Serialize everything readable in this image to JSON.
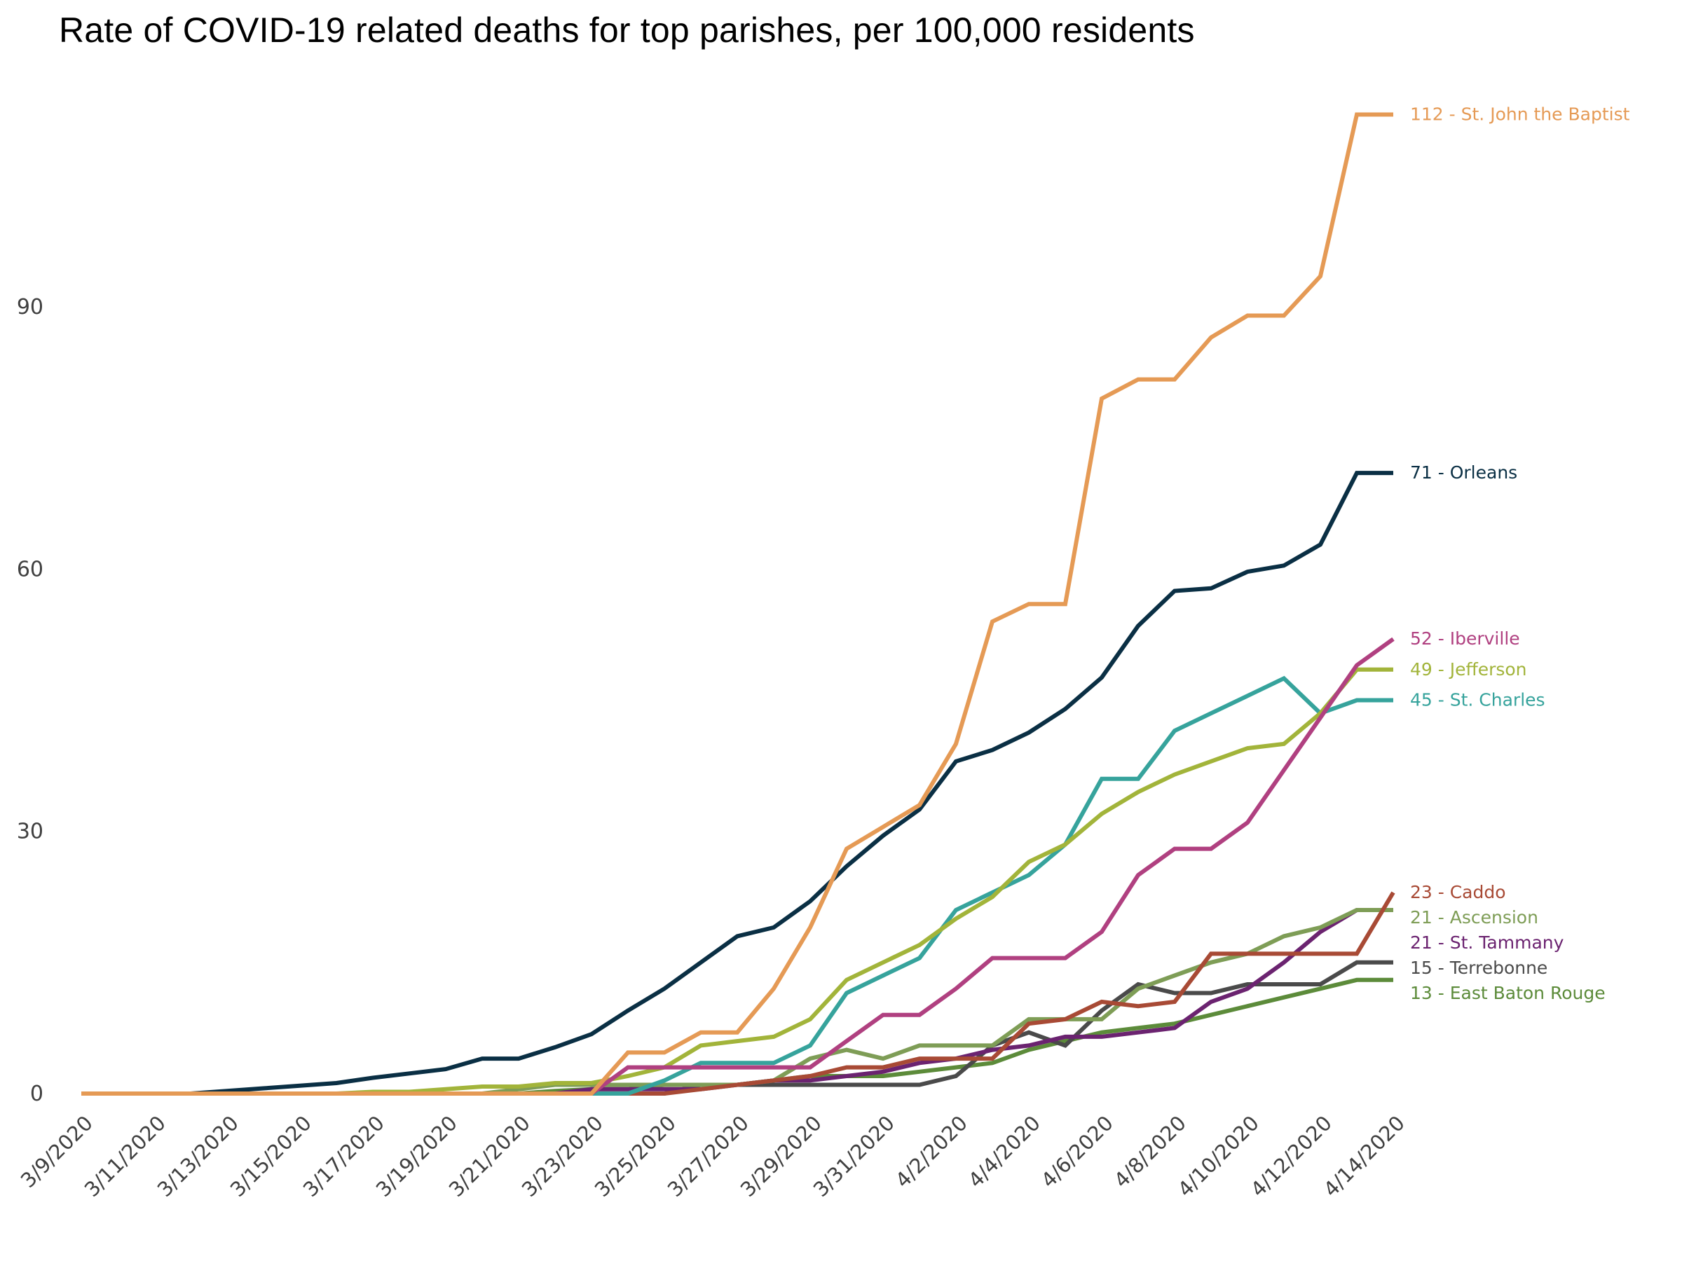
{
  "chart_data": {
    "type": "line",
    "title": "Rate of COVID-19 related deaths for top parishes, per 100,000 residents",
    "xlabel": "",
    "ylabel": "",
    "ylim": [
      0,
      115
    ],
    "yticks": [
      0,
      30,
      60,
      90
    ],
    "grid": false,
    "legend": "direct end-of-line labels (right)",
    "x": [
      "3/9/2020",
      "3/10/2020",
      "3/11/2020",
      "3/12/2020",
      "3/13/2020",
      "3/14/2020",
      "3/15/2020",
      "3/16/2020",
      "3/17/2020",
      "3/18/2020",
      "3/19/2020",
      "3/20/2020",
      "3/21/2020",
      "3/22/2020",
      "3/23/2020",
      "3/24/2020",
      "3/25/2020",
      "3/26/2020",
      "3/27/2020",
      "3/28/2020",
      "3/29/2020",
      "3/30/2020",
      "3/31/2020",
      "4/1/2020",
      "4/2/2020",
      "4/3/2020",
      "4/4/2020",
      "4/5/2020",
      "4/6/2020",
      "4/7/2020",
      "4/8/2020",
      "4/9/2020",
      "4/10/2020",
      "4/11/2020",
      "4/12/2020",
      "4/13/2020",
      "4/14/2020"
    ],
    "xtick_labels": [
      "3/9/2020",
      "3/11/2020",
      "3/13/2020",
      "3/15/2020",
      "3/17/2020",
      "3/19/2020",
      "3/21/2020",
      "3/23/2020",
      "3/25/2020",
      "3/27/2020",
      "3/29/2020",
      "3/31/2020",
      "4/2/2020",
      "4/4/2020",
      "4/6/2020",
      "4/8/2020",
      "4/10/2020",
      "4/12/2020",
      "4/14/2020"
    ],
    "series": [
      {
        "name": "St. John the Baptist",
        "label": "112 - St. John the Baptist",
        "color": "#E59A55",
        "values": [
          0,
          0,
          0,
          0,
          0,
          0,
          0,
          0,
          0,
          0,
          0,
          0,
          0,
          0,
          0,
          4.7,
          4.7,
          7,
          7,
          12,
          19,
          28,
          30.5,
          33,
          40,
          54,
          56,
          56,
          79.5,
          81.7,
          81.7,
          86.5,
          89,
          89,
          93.5,
          112,
          112
        ]
      },
      {
        "name": "Orleans",
        "label": "71 - Orleans",
        "color": "#0A2F44",
        "values": [
          0,
          0,
          0,
          0,
          0.3,
          0.6,
          0.9,
          1.2,
          1.8,
          2.3,
          2.8,
          4,
          4,
          5.3,
          6.8,
          9.5,
          12,
          15,
          18,
          19,
          22,
          26,
          29.5,
          32.5,
          38,
          39.3,
          41.3,
          44,
          47.6,
          53.5,
          57.5,
          57.8,
          59.7,
          60.4,
          62.8,
          71,
          71
        ]
      },
      {
        "name": "Iberville",
        "label": "52 - Iberville",
        "color": "#B04080",
        "values": [
          0,
          0,
          0,
          0,
          0,
          0,
          0,
          0,
          0,
          0,
          0,
          0,
          0,
          0,
          0,
          3,
          3,
          3,
          3,
          3,
          3,
          6,
          9,
          9,
          12,
          15.5,
          15.5,
          15.5,
          18.5,
          25,
          28,
          28,
          31,
          37,
          43,
          49,
          52
        ]
      },
      {
        "name": "Jefferson",
        "label": "49 - Jefferson",
        "color": "#A2B43A",
        "values": [
          0,
          0,
          0,
          0,
          0,
          0,
          0,
          0,
          0.2,
          0.2,
          0.5,
          0.8,
          0.8,
          1.2,
          1.2,
          2,
          3,
          5.5,
          6,
          6.5,
          8.5,
          13,
          15,
          17,
          20,
          22.5,
          26.5,
          28.5,
          32,
          34.5,
          36.5,
          38,
          39.5,
          40,
          43.5,
          48.5,
          48.5
        ]
      },
      {
        "name": "St. Charles",
        "label": "45 - St. Charles",
        "color": "#36A39C",
        "values": [
          0,
          0,
          0,
          0,
          0,
          0,
          0,
          0,
          0,
          0,
          0,
          0,
          0,
          0,
          0,
          0,
          1.5,
          3.5,
          3.5,
          3.5,
          5.5,
          11.5,
          13.5,
          15.5,
          21,
          23,
          25,
          28.5,
          36,
          36,
          41.5,
          43.5,
          45.5,
          47.5,
          43.5,
          45,
          45
        ]
      },
      {
        "name": "Caddo",
        "label": "23 - Caddo",
        "color": "#A84A35",
        "values": [
          0,
          0,
          0,
          0,
          0,
          0,
          0,
          0,
          0,
          0,
          0,
          0,
          0,
          0,
          0,
          0,
          0,
          0.5,
          1,
          1.5,
          2,
          3,
          3,
          4,
          4,
          4,
          8,
          8.5,
          10.5,
          10,
          10.5,
          16,
          16,
          16,
          16,
          16,
          23
        ]
      },
      {
        "name": "Ascension",
        "label": "21 - Ascension",
        "color": "#7E9D56",
        "values": [
          0,
          0,
          0,
          0,
          0,
          0,
          0,
          0,
          0,
          0,
          0,
          0,
          0.5,
          1,
          1,
          1,
          1,
          1,
          1,
          1.5,
          4,
          5,
          4,
          5.5,
          5.5,
          5.5,
          8.5,
          8.5,
          8.5,
          12,
          13.5,
          15,
          16,
          18,
          19,
          21,
          21
        ]
      },
      {
        "name": "St. Tammany",
        "label": "21 - St. Tammany",
        "color": "#6B2370",
        "values": [
          0,
          0,
          0,
          0,
          0,
          0,
          0,
          0,
          0,
          0,
          0,
          0,
          0,
          0,
          0.5,
          0.5,
          0.5,
          0.5,
          1,
          1.5,
          1.5,
          2,
          2.5,
          3.5,
          4,
          5,
          5.5,
          6.5,
          6.5,
          7,
          7.5,
          10.5,
          12,
          15,
          18.5,
          21,
          21
        ]
      },
      {
        "name": "Terrebonne",
        "label": "15 - Terrebonne",
        "color": "#4A4A4A",
        "values": [
          0,
          0,
          0,
          0,
          0,
          0,
          0,
          0,
          0,
          0,
          0,
          0,
          0,
          0,
          0,
          0,
          0,
          1,
          1,
          1,
          1,
          1,
          1,
          1,
          2,
          5.5,
          7,
          5.5,
          9.5,
          12.5,
          11.5,
          11.5,
          12.5,
          12.5,
          12.5,
          15,
          15
        ]
      },
      {
        "name": "East Baton Rouge",
        "label": "13 - East Baton Rouge",
        "color": "#5C8B3A",
        "values": [
          0,
          0,
          0,
          0,
          0,
          0,
          0,
          0,
          0,
          0,
          0,
          0,
          0,
          0.3,
          0.5,
          0.5,
          1,
          1,
          1,
          1.5,
          2,
          2,
          2,
          2.5,
          3,
          3.5,
          5,
          6,
          7,
          7.5,
          8,
          9,
          10,
          11,
          12,
          13,
          13
        ]
      }
    ]
  }
}
